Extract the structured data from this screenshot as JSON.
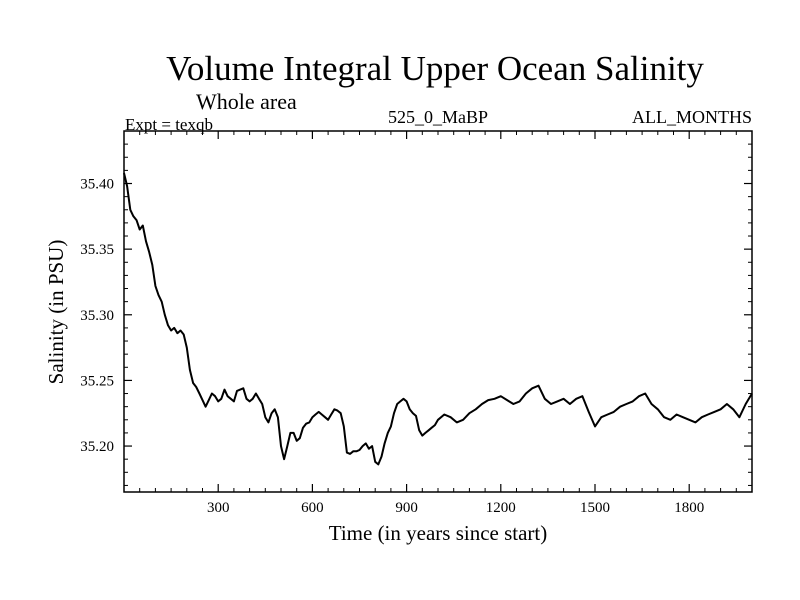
{
  "chart_data": {
    "type": "line",
    "title": "Volume Integral Upper Ocean Salinity",
    "subtitle": "Whole area",
    "header_left": "Expt = texqb",
    "header_center": "525_0_MaBP",
    "header_right": "ALL_MONTHS",
    "xlabel": "Time (in years since start)",
    "ylabel": "Salinity (in PSU)",
    "xlim": [
      0,
      2000
    ],
    "ylim": [
      35.165,
      35.44
    ],
    "x_ticks": [
      300,
      600,
      900,
      1200,
      1500,
      1800
    ],
    "x_tick_labels": [
      "300",
      "600",
      "900",
      "1200",
      "1500",
      "1800"
    ],
    "y_ticks": [
      35.2,
      35.25,
      35.3,
      35.35,
      35.4
    ],
    "y_tick_labels": [
      "35.20",
      "35.25",
      "35.30",
      "35.35",
      "35.40"
    ],
    "grid": false,
    "line_color": "#000000",
    "series": [
      {
        "x": [
          0,
          10,
          20,
          30,
          40,
          50,
          60,
          70,
          80,
          90,
          100,
          110,
          120,
          130,
          140,
          150,
          160,
          170,
          180,
          190,
          200,
          210,
          220,
          230,
          240,
          250,
          260,
          270,
          280,
          290,
          300,
          310,
          320,
          330,
          340,
          350,
          360,
          370,
          380,
          390,
          400,
          410,
          420,
          430,
          440,
          450,
          460,
          470,
          480,
          490,
          500,
          510,
          520,
          530,
          540,
          550,
          560,
          570,
          580,
          590,
          600,
          610,
          620,
          630,
          640,
          650,
          660,
          670,
          680,
          690,
          700,
          710,
          720,
          730,
          740,
          750,
          760,
          770,
          780,
          790,
          800,
          810,
          820,
          830,
          840,
          850,
          860,
          870,
          880,
          890,
          900,
          910,
          920,
          930,
          940,
          950,
          960,
          970,
          980,
          990,
          1000,
          1020,
          1040,
          1060,
          1080,
          1100,
          1120,
          1140,
          1160,
          1180,
          1200,
          1220,
          1240,
          1260,
          1280,
          1300,
          1320,
          1340,
          1360,
          1380,
          1400,
          1420,
          1440,
          1460,
          1480,
          1500,
          1520,
          1540,
          1560,
          1580,
          1600,
          1620,
          1640,
          1660,
          1680,
          1700,
          1720,
          1740,
          1760,
          1780,
          1800,
          1820,
          1840,
          1860,
          1880,
          1900,
          1920,
          1940,
          1960,
          1980,
          2000
        ],
        "values": [
          35.408,
          35.398,
          35.38,
          35.375,
          35.372,
          35.365,
          35.368,
          35.356,
          35.348,
          35.338,
          35.322,
          35.315,
          35.31,
          35.3,
          35.292,
          35.288,
          35.29,
          35.286,
          35.288,
          35.285,
          35.275,
          35.258,
          35.248,
          35.245,
          35.24,
          35.235,
          35.23,
          35.235,
          35.24,
          35.238,
          35.234,
          35.236,
          35.243,
          35.238,
          35.236,
          35.234,
          35.242,
          35.243,
          35.244,
          35.236,
          35.234,
          35.236,
          35.24,
          35.236,
          35.232,
          35.222,
          35.218,
          35.225,
          35.228,
          35.222,
          35.2,
          35.19,
          35.2,
          35.21,
          35.21,
          35.204,
          35.206,
          35.214,
          35.217,
          35.218,
          35.222,
          35.224,
          35.226,
          35.224,
          35.222,
          35.22,
          35.224,
          35.228,
          35.227,
          35.225,
          35.215,
          35.195,
          35.194,
          35.196,
          35.196,
          35.197,
          35.2,
          35.202,
          35.198,
          35.2,
          35.188,
          35.186,
          35.192,
          35.202,
          35.21,
          35.215,
          35.225,
          35.232,
          35.234,
          35.236,
          35.234,
          35.228,
          35.225,
          35.223,
          35.212,
          35.208,
          35.21,
          35.212,
          35.214,
          35.216,
          35.22,
          35.224,
          35.222,
          35.218,
          35.22,
          35.225,
          35.228,
          35.232,
          35.235,
          35.236,
          35.238,
          35.235,
          35.232,
          35.234,
          35.24,
          35.244,
          35.246,
          35.236,
          35.232,
          35.234,
          35.236,
          35.232,
          35.236,
          35.238,
          35.226,
          35.215,
          35.222,
          35.224,
          35.226,
          35.23,
          35.232,
          35.234,
          35.238,
          35.24,
          35.232,
          35.228,
          35.222,
          35.22,
          35.224,
          35.222,
          35.22,
          35.218,
          35.222,
          35.224,
          35.226,
          35.228,
          35.232,
          35.228,
          35.222,
          35.232,
          35.24
        ]
      }
    ]
  }
}
